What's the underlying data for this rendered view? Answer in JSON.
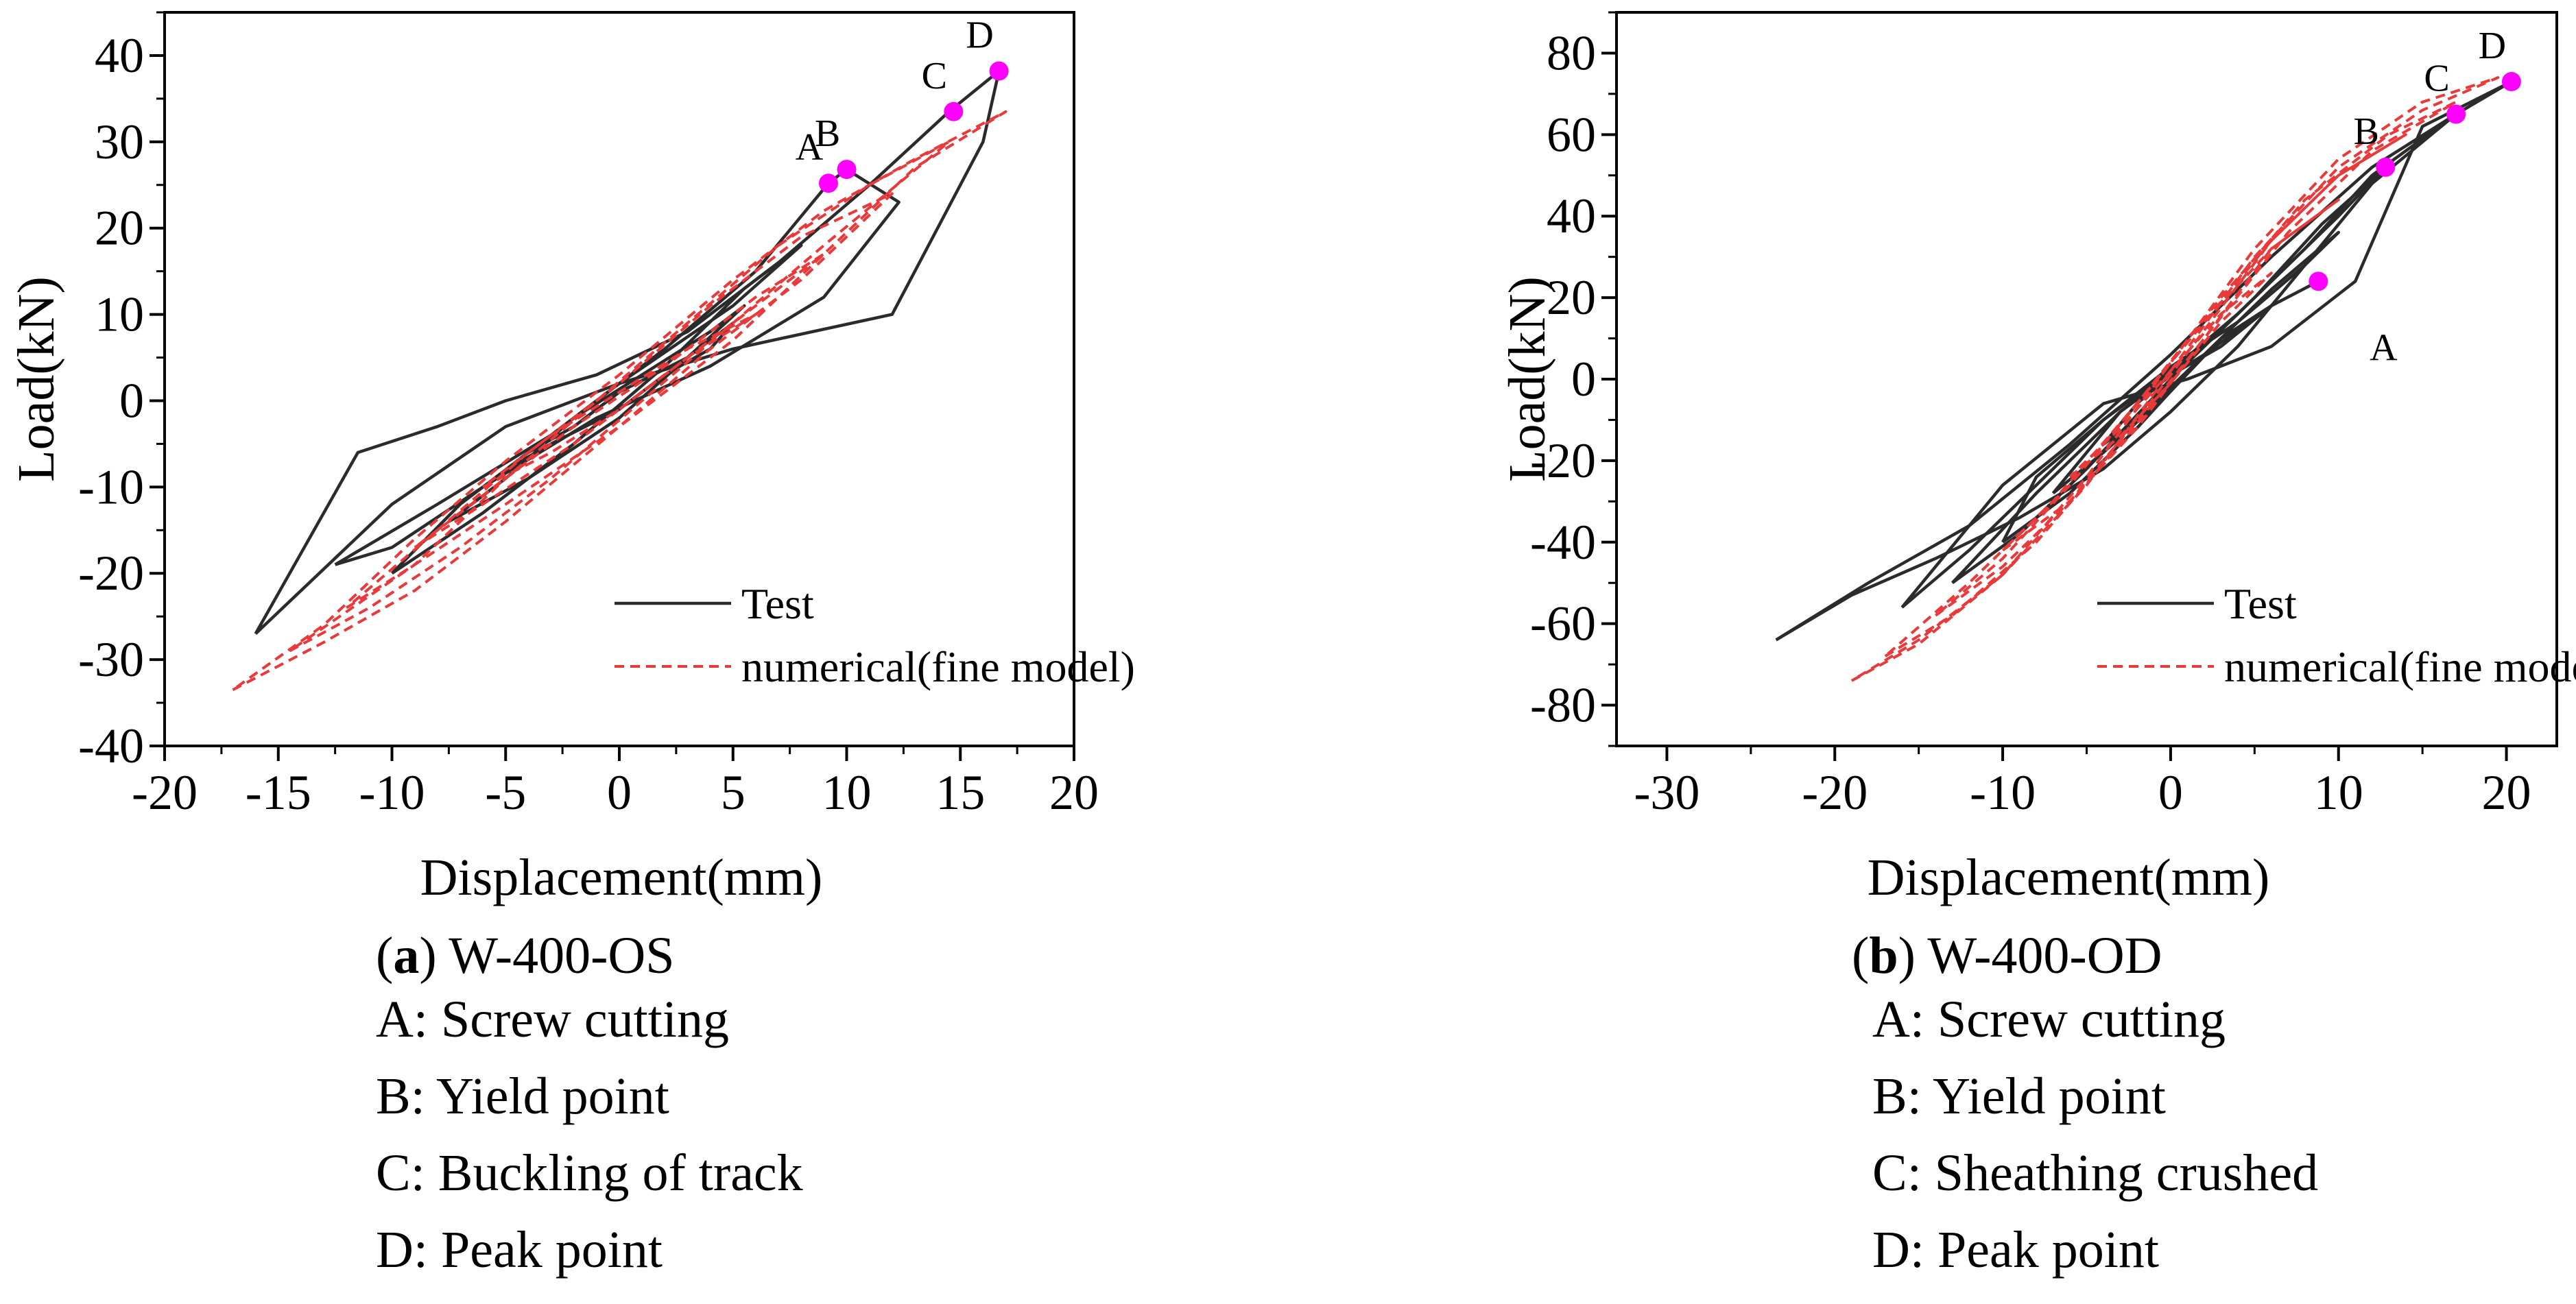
{
  "colors": {
    "test": "#2b2b2b",
    "numerical": "#e8393b",
    "marker": "#ff00ff",
    "axis": "#000000"
  },
  "panels": [
    {
      "caption_letter": "a",
      "caption_title": "W-400-OS",
      "notes": [
        "A: Screw cutting",
        "B: Yield point",
        "C: Buckling of track",
        "D: Peak point"
      ]
    },
    {
      "caption_letter": "b",
      "caption_title": "W-400-OD",
      "notes": [
        "A: Screw cutting",
        "B: Yield point",
        "C: Sheathing crushed",
        "D: Peak point"
      ]
    }
  ],
  "chart_data": [
    {
      "type": "line",
      "title": "(a) W-400-OS",
      "xlabel": "Displacement(mm)",
      "ylabel": "Load(kN)",
      "xlim": [
        -20,
        20
      ],
      "ylim": [
        -40,
        45
      ],
      "xticks": [
        -20,
        -15,
        -10,
        -5,
        0,
        5,
        10,
        15,
        20
      ],
      "yticks": [
        -40,
        -30,
        -20,
        -10,
        0,
        10,
        20,
        30,
        40
      ],
      "legend_position": "bottom-right",
      "series": [
        {
          "name": "Test",
          "style": "solid",
          "loops": [
            {
              "x": [
                -5,
                -3,
                0,
                2,
                4,
                5,
                3,
                0,
                -2,
                -4,
                -5
              ],
              "y": [
                -8,
                -5,
                -1,
                3,
                6,
                9,
                5,
                1,
                -3,
                -6,
                -8
              ]
            },
            {
              "x": [
                -7.5,
                -4,
                0,
                3,
                5.5,
                4,
                1,
                -2,
                -5,
                -7.5
              ],
              "y": [
                -14,
                -9,
                -2,
                5,
                11,
                8,
                3,
                -2,
                -9,
                -14
              ]
            },
            {
              "x": [
                -10,
                -6,
                -2,
                2,
                5.5,
                8,
                5,
                0,
                -3,
                -7,
                -10
              ],
              "y": [
                -20,
                -13,
                -5,
                4,
                13,
                18,
                11,
                2,
                -4,
                -12,
                -20
              ]
            },
            {
              "x": [
                -12.5,
                -8,
                -3,
                2,
                6,
                9.2,
                10,
                12.3,
                9,
                4,
                -1,
                -6,
                -10,
                -12.5
              ],
              "y": [
                -19,
                -12,
                -4,
                6,
                15,
                25.2,
                26.8,
                23,
                12,
                4,
                -2,
                -10,
                -17,
                -19
              ]
            },
            {
              "x": [
                -16,
                -11.5,
                -8,
                -5,
                -1,
                3,
                7,
                11,
                14.5,
                16.7,
                16,
                12,
                5,
                0,
                -5,
                -10,
                -16
              ],
              "y": [
                -27,
                -6,
                -3,
                0,
                3,
                8,
                16,
                25,
                33.5,
                38.2,
                30,
                10,
                6,
                2,
                -3,
                -12,
                -27
              ]
            }
          ]
        },
        {
          "name": "numerical(fine model)",
          "style": "dashed",
          "loops": [
            {
              "x": [
                -6,
                -3,
                0,
                3,
                6,
                3,
                0,
                -3,
                -6
              ],
              "y": [
                -10,
                -6,
                -1,
                5,
                10,
                6,
                1,
                -4,
                -10
              ]
            },
            {
              "x": [
                -9,
                -6,
                -2,
                2,
                6,
                9,
                6,
                2,
                -2,
                -6,
                -9
              ],
              "y": [
                -17,
                -12,
                -5,
                3,
                11,
                17,
                12,
                4,
                -3,
                -11,
                -17
              ]
            },
            {
              "x": [
                -12,
                -9,
                -5,
                0,
                4,
                8,
                12,
                8,
                4,
                0,
                -4,
                -8,
                -12
              ],
              "y": [
                -24,
                -19,
                -12,
                -3,
                6,
                14,
                24,
                19,
                11,
                2,
                -6,
                -15,
                -24
              ]
            },
            {
              "x": [
                -14.5,
                -11,
                -7,
                -3,
                1,
                5,
                9,
                14.5,
                11,
                7,
                3,
                -1,
                -5,
                -9,
                -14.5
              ],
              "y": [
                -29,
                -24,
                -17,
                -9,
                0,
                9,
                18,
                30,
                25,
                18,
                9,
                0,
                -9,
                -19,
                -29
              ]
            },
            {
              "x": [
                -17,
                -13,
                -9,
                -5,
                0,
                5,
                9,
                13,
                17,
                13,
                9,
                5,
                0,
                -5,
                -9,
                -13,
                -17
              ],
              "y": [
                -33.5,
                -28,
                -22,
                -14,
                -3,
                7,
                17,
                27,
                33.5,
                28,
                22,
                14,
                3,
                -7,
                -16,
                -26,
                -33.5
              ]
            }
          ]
        }
      ],
      "points": [
        {
          "label": "A",
          "x": 9.2,
          "y": 25.2
        },
        {
          "label": "B",
          "x": 10.0,
          "y": 26.8
        },
        {
          "label": "C",
          "x": 14.7,
          "y": 33.5
        },
        {
          "label": "D",
          "x": 16.7,
          "y": 38.2
        }
      ]
    },
    {
      "type": "line",
      "title": "(b) W-400-OD",
      "xlabel": "Displacement(mm)",
      "ylabel": "Load(kN)",
      "xlim": [
        -33,
        23
      ],
      "ylim": [
        -90,
        90
      ],
      "xticks": [
        -30,
        -20,
        -10,
        0,
        10,
        20
      ],
      "yticks": [
        -80,
        -60,
        -40,
        -20,
        0,
        20,
        40,
        60,
        80
      ],
      "legend_position": "bottom-right",
      "series": [
        {
          "name": "Test",
          "style": "solid",
          "loops": [
            {
              "x": [
                -4,
                -2,
                0,
                2,
                4,
                6,
                4,
                2,
                0,
                -2,
                -4
              ],
              "y": [
                -16,
                -10,
                -2,
                6,
                12,
                18,
                12,
                6,
                1,
                -6,
                -16
              ]
            },
            {
              "x": [
                -7,
                -4,
                0,
                3,
                6,
                8.8,
                6,
                3,
                0,
                -3,
                -7
              ],
              "y": [
                -28,
                -18,
                -3,
                10,
                18,
                24,
                18,
                8,
                1,
                -8,
                -28
              ]
            },
            {
              "x": [
                -10,
                -6,
                -2,
                2,
                6,
                10,
                8,
                4,
                0,
                -4,
                -8,
                -10
              ],
              "y": [
                -40,
                -28,
                -12,
                6,
                22,
                36,
                28,
                14,
                3,
                -10,
                -24,
                -40
              ]
            },
            {
              "x": [
                -13,
                -9,
                -5,
                0,
                5,
                9,
                12.8,
                10,
                6,
                2,
                -3,
                -8,
                -13
              ],
              "y": [
                -50,
                -38,
                -22,
                0,
                20,
                38,
                52,
                40,
                24,
                8,
                -8,
                -28,
                -50
              ]
            },
            {
              "x": [
                -16,
                -12,
                -8,
                -4,
                0,
                4,
                8,
                12,
                17,
                20.3,
                15,
                11,
                6,
                1,
                -4,
                -10,
                -16
              ],
              "y": [
                -56,
                -42,
                -26,
                -10,
                2,
                16,
                32,
                50,
                65,
                73,
                62,
                24,
                8,
                0,
                -6,
                -26,
                -56
              ]
            },
            {
              "x": [
                -23.5,
                -19,
                -14,
                -9,
                -4,
                0,
                4,
                8,
                12,
                17,
                12,
                6,
                0,
                -6,
                -12,
                -18,
                -23.5
              ],
              "y": [
                -64,
                -53,
                -44,
                -34,
                -22,
                -8,
                8,
                28,
                48,
                65,
                52,
                30,
                6,
                -16,
                -36,
                -50,
                -64
              ]
            }
          ]
        },
        {
          "name": "numerical(fine model)",
          "style": "dashed",
          "loops": [
            {
              "x": [
                -6,
                -3,
                0,
                3,
                6,
                3,
                0,
                -3,
                -6
              ],
              "y": [
                -24,
                -14,
                -1,
                14,
                26,
                16,
                2,
                -12,
                -24
              ]
            },
            {
              "x": [
                -10,
                -6,
                -2,
                2,
                6,
                10,
                6,
                2,
                -2,
                -6,
                -10
              ],
              "y": [
                -42,
                -30,
                -12,
                10,
                32,
                44,
                32,
                14,
                -6,
                -26,
                -42
              ]
            },
            {
              "x": [
                -14,
                -10,
                -6,
                -2,
                2,
                6,
                10,
                14,
                10,
                6,
                2,
                -2,
                -6,
                -10,
                -14
              ],
              "y": [
                -58,
                -46,
                -30,
                -10,
                12,
                34,
                50,
                60,
                50,
                34,
                14,
                -6,
                -26,
                -44,
                -58
              ]
            },
            {
              "x": [
                -17,
                -13,
                -8,
                -3,
                2,
                7,
                12,
                17,
                13,
                8,
                3,
                -2,
                -7,
                -12,
                -17
              ],
              "y": [
                -68,
                -58,
                -40,
                -16,
                10,
                36,
                56,
                68,
                60,
                44,
                20,
                -6,
                -30,
                -50,
                -68
              ]
            },
            {
              "x": [
                -19,
                -15,
                -10,
                -5,
                0,
                5,
                10,
                15,
                19.5,
                15,
                10,
                5,
                0,
                -5,
                -10,
                -15,
                -19
              ],
              "y": [
                -74,
                -65,
                -48,
                -24,
                4,
                32,
                54,
                68,
                74,
                66,
                52,
                30,
                2,
                -26,
                -48,
                -64,
                -74
              ]
            }
          ]
        }
      ],
      "points": [
        {
          "label": "A",
          "x": 8.8,
          "y": 24,
          "label_pos": "below-right"
        },
        {
          "label": "B",
          "x": 12.8,
          "y": 52
        },
        {
          "label": "C",
          "x": 17.0,
          "y": 65
        },
        {
          "label": "D",
          "x": 20.3,
          "y": 73
        }
      ]
    }
  ]
}
